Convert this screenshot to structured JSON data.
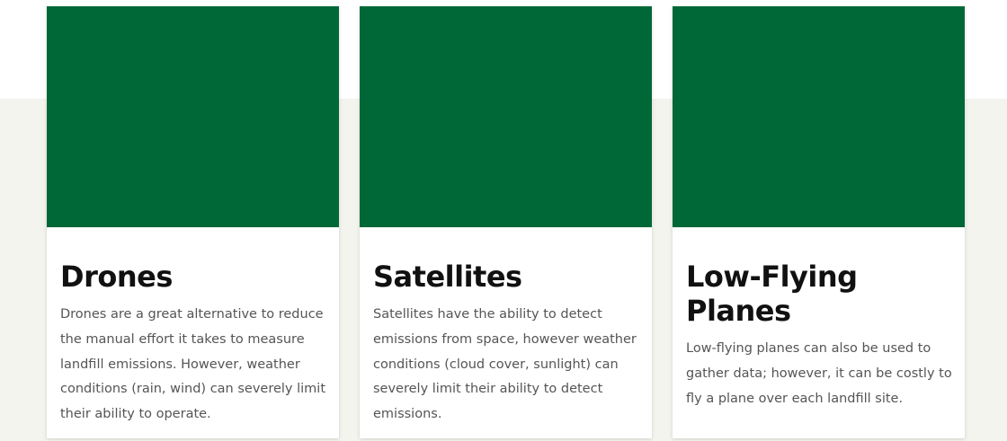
{
  "cards": [
    {
      "title": "Drones",
      "lines": [
        "Drones are a great alternative to reduce",
        "the manual effort it takes to measure",
        "landfill emissions. However, weather",
        "conditions (rain, wind) can severely limit",
        "their ability to operate."
      ]
    },
    {
      "title": "Satellites",
      "lines": [
        "Satellites have the ability to detect",
        "emissions from space, however weather",
        "conditions (cloud cover, sunlight) can",
        "severely limit their ability to detect",
        "emissions."
      ]
    },
    {
      "title": "Low-Flying Planes",
      "lines": [
        "Low-flying planes can also be used to",
        "gather data; however, it can be costly to",
        "fly a plane over each landfill site."
      ]
    }
  ]
}
